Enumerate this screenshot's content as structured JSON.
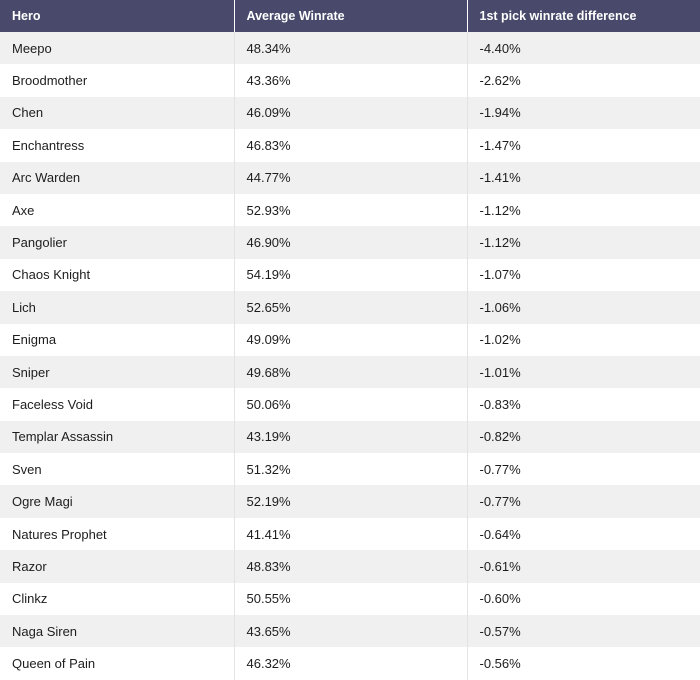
{
  "chart_data": {
    "type": "table",
    "columns": [
      "Hero",
      "Average Winrate",
      "1st pick winrate difference"
    ],
    "rows": [
      [
        "Meepo",
        "48.34%",
        "-4.40%"
      ],
      [
        "Broodmother",
        "43.36%",
        "-2.62%"
      ],
      [
        "Chen",
        "46.09%",
        "-1.94%"
      ],
      [
        "Enchantress",
        "46.83%",
        "-1.47%"
      ],
      [
        "Arc Warden",
        "44.77%",
        "-1.41%"
      ],
      [
        "Axe",
        "52.93%",
        "-1.12%"
      ],
      [
        "Pangolier",
        "46.90%",
        "-1.12%"
      ],
      [
        "Chaos Knight",
        "54.19%",
        "-1.07%"
      ],
      [
        "Lich",
        "52.65%",
        "-1.06%"
      ],
      [
        "Enigma",
        "49.09%",
        "-1.02%"
      ],
      [
        "Sniper",
        "49.68%",
        "-1.01%"
      ],
      [
        "Faceless Void",
        "50.06%",
        "-0.83%"
      ],
      [
        "Templar Assassin",
        "43.19%",
        "-0.82%"
      ],
      [
        "Sven",
        "51.32%",
        "-0.77%"
      ],
      [
        "Ogre Magi",
        "52.19%",
        "-0.77%"
      ],
      [
        "Natures Prophet",
        "41.41%",
        "-0.64%"
      ],
      [
        "Razor",
        "48.83%",
        "-0.61%"
      ],
      [
        "Clinkz",
        "50.55%",
        "-0.60%"
      ],
      [
        "Naga Siren",
        "43.65%",
        "-0.57%"
      ],
      [
        "Queen of Pain",
        "46.32%",
        "-0.56%"
      ]
    ]
  },
  "colors": {
    "header_bg": "#494a6b",
    "header_text": "#ffffff",
    "row_bg": "#ffffff",
    "row_alt_bg": "#f0f0f0",
    "cell_border": "#e3e3e3"
  }
}
